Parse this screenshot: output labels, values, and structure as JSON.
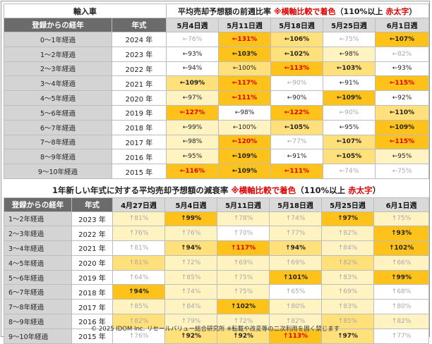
{
  "colors": {
    "header_dark": "#6b6b6b",
    "header_light": "#d9d9d9",
    "row_label": "#d4d4d4",
    "level_colors": [
      "#ffffff",
      "#fff3c2",
      "#ffe07a",
      "#ffc21a"
    ],
    "text_red": "#e00000",
    "text_grey": "#a8a8a8"
  },
  "table1": {
    "label": "輸入車",
    "title_main": "平均売却予想額の前週比率 ",
    "title_note": "※横軸比較で着色",
    "title_paren_open": "（110%以上 ",
    "title_red": "赤太字",
    "title_paren_close": "）",
    "header_group": "登録からの経年",
    "header_year": "年式",
    "columns": [
      "5月4日週",
      "5月11日週",
      "5月18日週",
      "5月25日週",
      "6月1日週"
    ],
    "rows": [
      {
        "group": "0～1年経過",
        "year": "2024 年",
        "cells": [
          [
            "←76%",
            0,
            "grey"
          ],
          [
            "←131%",
            3,
            "red"
          ],
          [
            "←106%",
            2,
            "bold"
          ],
          [
            "←75%",
            0,
            "grey"
          ],
          [
            "←107%",
            3,
            "bold"
          ]
        ]
      },
      {
        "group": "1～2年経過",
        "year": "2023 年",
        "cells": [
          [
            "←93%",
            0,
            ""
          ],
          [
            "←103%",
            3,
            "bold"
          ],
          [
            "←102%",
            2,
            "bold"
          ],
          [
            "←98%",
            1,
            ""
          ],
          [
            "←82%",
            0,
            "grey"
          ]
        ]
      },
      {
        "group": "2～3年経過",
        "year": "2022 年",
        "cells": [
          [
            "←94%",
            0,
            ""
          ],
          [
            "←100%",
            2,
            ""
          ],
          [
            "←113%",
            3,
            "red"
          ],
          [
            "←103%",
            2,
            "bold"
          ],
          [
            "←93%",
            0,
            ""
          ]
        ]
      },
      {
        "group": "3～4年経過",
        "year": "2021 年",
        "cells": [
          [
            "←109%",
            2,
            "bold"
          ],
          [
            "←117%",
            3,
            "red"
          ],
          [
            "←90%",
            0,
            "grey"
          ],
          [
            "←91%",
            0,
            ""
          ],
          [
            "←115%",
            3,
            "red"
          ]
        ]
      },
      {
        "group": "4～5年経過",
        "year": "2020 年",
        "cells": [
          [
            "←97%",
            1,
            ""
          ],
          [
            "←111%",
            3,
            "red"
          ],
          [
            "←90%",
            0,
            ""
          ],
          [
            "←109%",
            3,
            "bold"
          ],
          [
            "←92%",
            0,
            ""
          ]
        ]
      },
      {
        "group": "5～6年経過",
        "year": "2019 年",
        "cells": [
          [
            "←127%",
            3,
            "red"
          ],
          [
            "←98%",
            0,
            ""
          ],
          [
            "←122%",
            3,
            "red"
          ],
          [
            "←90%",
            0,
            "grey"
          ],
          [
            "←110%",
            2,
            "bold"
          ]
        ]
      },
      {
        "group": "6～7年経過",
        "year": "2018 年",
        "cells": [
          [
            "←99%",
            1,
            ""
          ],
          [
            "←100%",
            1,
            ""
          ],
          [
            "←105%",
            2,
            "bold"
          ],
          [
            "←95%",
            0,
            ""
          ],
          [
            "←109%",
            3,
            "bold"
          ]
        ]
      },
      {
        "group": "7～8年経過",
        "year": "2017 年",
        "cells": [
          [
            "←98%",
            1,
            ""
          ],
          [
            "←120%",
            3,
            "red"
          ],
          [
            "←77%",
            0,
            "grey"
          ],
          [
            "←107%",
            2,
            "bold"
          ],
          [
            "←115%",
            3,
            "red"
          ]
        ]
      },
      {
        "group": "8～9年経過",
        "year": "2016 年",
        "cells": [
          [
            "←95%",
            1,
            ""
          ],
          [
            "←109%",
            3,
            "bold"
          ],
          [
            "←91%",
            0,
            ""
          ],
          [
            "←105%",
            2,
            "bold"
          ],
          [
            "←95%",
            1,
            ""
          ]
        ]
      },
      {
        "group": "9～10年経過",
        "year": "2015 年",
        "cells": [
          [
            "←116%",
            3,
            "red"
          ],
          [
            "←109%",
            3,
            "bold"
          ],
          [
            "←111%",
            3,
            "red"
          ],
          [
            "←74%",
            0,
            "grey"
          ],
          [
            "←75%",
            0,
            "grey"
          ]
        ]
      }
    ]
  },
  "table2": {
    "title_main": "1年新しい年式に対する平均売却予想額の減衰率 ",
    "title_note": "※横軸比較で着色",
    "title_paren_open": "（110%以上 ",
    "title_red": "赤太字",
    "title_paren_close": "）",
    "header_group": "登録からの経年",
    "header_year": "年式",
    "columns": [
      "4月27日週",
      "5月4日週",
      "5月11日週",
      "5月18日週",
      "5月25日週",
      "6月1日週"
    ],
    "rows": [
      {
        "group": "1～2年経過",
        "year": "2023 年",
        "cells": [
          [
            "↑81%",
            1,
            "grey"
          ],
          [
            "↑99%",
            3,
            "bold"
          ],
          [
            "↑78%",
            1,
            "grey"
          ],
          [
            "↑74%",
            1,
            "grey"
          ],
          [
            "↑97%",
            3,
            "bold"
          ],
          [
            "↑75%",
            1,
            "grey"
          ]
        ]
      },
      {
        "group": "2～3年経過",
        "year": "2022 年",
        "cells": [
          [
            "↑76%",
            1,
            "grey"
          ],
          [
            "↑76%",
            1,
            "grey"
          ],
          [
            "↑70%",
            0,
            "grey"
          ],
          [
            "↑77%",
            1,
            "grey"
          ],
          [
            "↑82%",
            1,
            "grey"
          ],
          [
            "↑93%",
            3,
            "bold"
          ]
        ]
      },
      {
        "group": "3～4年経過",
        "year": "2021 年",
        "cells": [
          [
            "↑81%",
            0,
            "grey"
          ],
          [
            "↑94%",
            2,
            "bold"
          ],
          [
            "↑117%",
            3,
            "red"
          ],
          [
            "↑94%",
            2,
            "bold"
          ],
          [
            "↑84%",
            1,
            "grey"
          ],
          [
            "↑102%",
            3,
            "bold"
          ]
        ]
      },
      {
        "group": "4～5年経過",
        "year": "2020 年",
        "cells": [
          [
            "↑81%",
            2,
            "grey"
          ],
          [
            "↑72%",
            1,
            "grey"
          ],
          [
            "↑69%",
            1,
            "grey"
          ],
          [
            "↑69%",
            1,
            "grey"
          ],
          [
            "↑82%",
            2,
            "grey"
          ],
          [
            "↑66%",
            1,
            "grey"
          ]
        ]
      },
      {
        "group": "5～6年経過",
        "year": "2019 年",
        "cells": [
          [
            "↑64%",
            0,
            "grey"
          ],
          [
            "↑85%",
            1,
            "grey"
          ],
          [
            "↑75%",
            1,
            "grey"
          ],
          [
            "↑101%",
            3,
            "bold"
          ],
          [
            "↑83%",
            1,
            "grey"
          ],
          [
            "↑99%",
            3,
            "bold"
          ]
        ]
      },
      {
        "group": "6～7年経過",
        "year": "2018 年",
        "cells": [
          [
            "↑94%",
            3,
            "bold"
          ],
          [
            "↑74%",
            1,
            "grey"
          ],
          [
            "↑75%",
            1,
            "grey"
          ],
          [
            "↑65%",
            0,
            "grey"
          ],
          [
            "↑69%",
            1,
            "grey"
          ],
          [
            "↑68%",
            0,
            "grey"
          ]
        ]
      },
      {
        "group": "7～8年経過",
        "year": "2017 年",
        "cells": [
          [
            "↑85%",
            1,
            "grey"
          ],
          [
            "↑84%",
            1,
            "grey"
          ],
          [
            "↑102%",
            3,
            "bold"
          ],
          [
            "↑80%",
            1,
            "grey"
          ],
          [
            "↑83%",
            1,
            "grey"
          ],
          [
            "↑80%",
            0,
            "grey"
          ]
        ]
      },
      {
        "group": "8～9年経過",
        "year": "2016 年",
        "cells": [
          [
            "↑82%",
            2,
            "grey"
          ],
          [
            "↑79%",
            1,
            "grey"
          ],
          [
            "↑72%",
            1,
            "grey"
          ],
          [
            "↑82%",
            1,
            "grey"
          ],
          [
            "↑85%",
            2,
            "grey"
          ],
          [
            "↑82%",
            1,
            "grey"
          ]
        ]
      },
      {
        "group": "9～10年経過",
        "year": "2015 年",
        "cells": [
          [
            "↑76%",
            0,
            "grey"
          ],
          [
            "↑92%",
            2,
            "bold"
          ],
          [
            "↑92%",
            2,
            "bold"
          ],
          [
            "↑113%",
            3,
            "red"
          ],
          [
            "↑97%",
            2,
            "bold"
          ],
          [
            "↑77%",
            0,
            "grey"
          ]
        ]
      }
    ]
  },
  "footer": "© 2025 IDOM Inc. リセールバリュー総合研究所 ※転載や改変等の二次利用を固く禁じます"
}
